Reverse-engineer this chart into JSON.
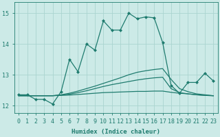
{
  "xlabel": "Humidex (Indice chaleur)",
  "xlim": [
    -0.5,
    23.5
  ],
  "ylim": [
    11.75,
    15.35
  ],
  "yticks": [
    12,
    13,
    14,
    15
  ],
  "xticks": [
    0,
    1,
    2,
    3,
    4,
    5,
    6,
    7,
    8,
    9,
    10,
    11,
    12,
    13,
    14,
    15,
    16,
    17,
    18,
    19,
    20,
    21,
    22,
    23
  ],
  "bg_color": "#cceae7",
  "grid_color": "#aad4d0",
  "line_color": "#1e7b6e",
  "x": [
    0,
    1,
    2,
    3,
    4,
    5,
    6,
    7,
    8,
    9,
    10,
    11,
    12,
    13,
    14,
    15,
    16,
    17,
    18,
    19,
    20,
    21,
    22,
    23
  ],
  "line1_y": [
    12.35,
    12.35,
    12.2,
    12.2,
    12.05,
    12.45,
    13.5,
    13.1,
    14.0,
    13.8,
    14.75,
    14.45,
    14.45,
    15.0,
    14.82,
    14.88,
    14.85,
    14.05,
    12.65,
    12.4,
    12.75,
    12.75,
    13.05,
    12.8
  ],
  "line2_y": [
    12.32,
    12.32,
    12.32,
    12.32,
    12.32,
    12.35,
    12.4,
    12.47,
    12.55,
    12.63,
    12.72,
    12.81,
    12.9,
    13.0,
    13.08,
    13.13,
    13.17,
    13.2,
    12.85,
    12.55,
    12.45,
    12.38,
    12.35,
    12.32
  ],
  "line3_y": [
    12.32,
    12.32,
    12.32,
    12.32,
    12.32,
    12.34,
    12.37,
    12.42,
    12.48,
    12.55,
    12.62,
    12.68,
    12.73,
    12.78,
    12.83,
    12.87,
    12.9,
    12.92,
    12.55,
    12.42,
    12.38,
    12.35,
    12.33,
    12.32
  ],
  "line4_y": [
    12.32,
    12.32,
    12.32,
    12.32,
    12.32,
    12.33,
    12.34,
    12.36,
    12.38,
    12.4,
    12.42,
    12.43,
    12.44,
    12.45,
    12.46,
    12.46,
    12.47,
    12.47,
    12.43,
    12.4,
    12.38,
    12.35,
    12.33,
    12.32
  ]
}
